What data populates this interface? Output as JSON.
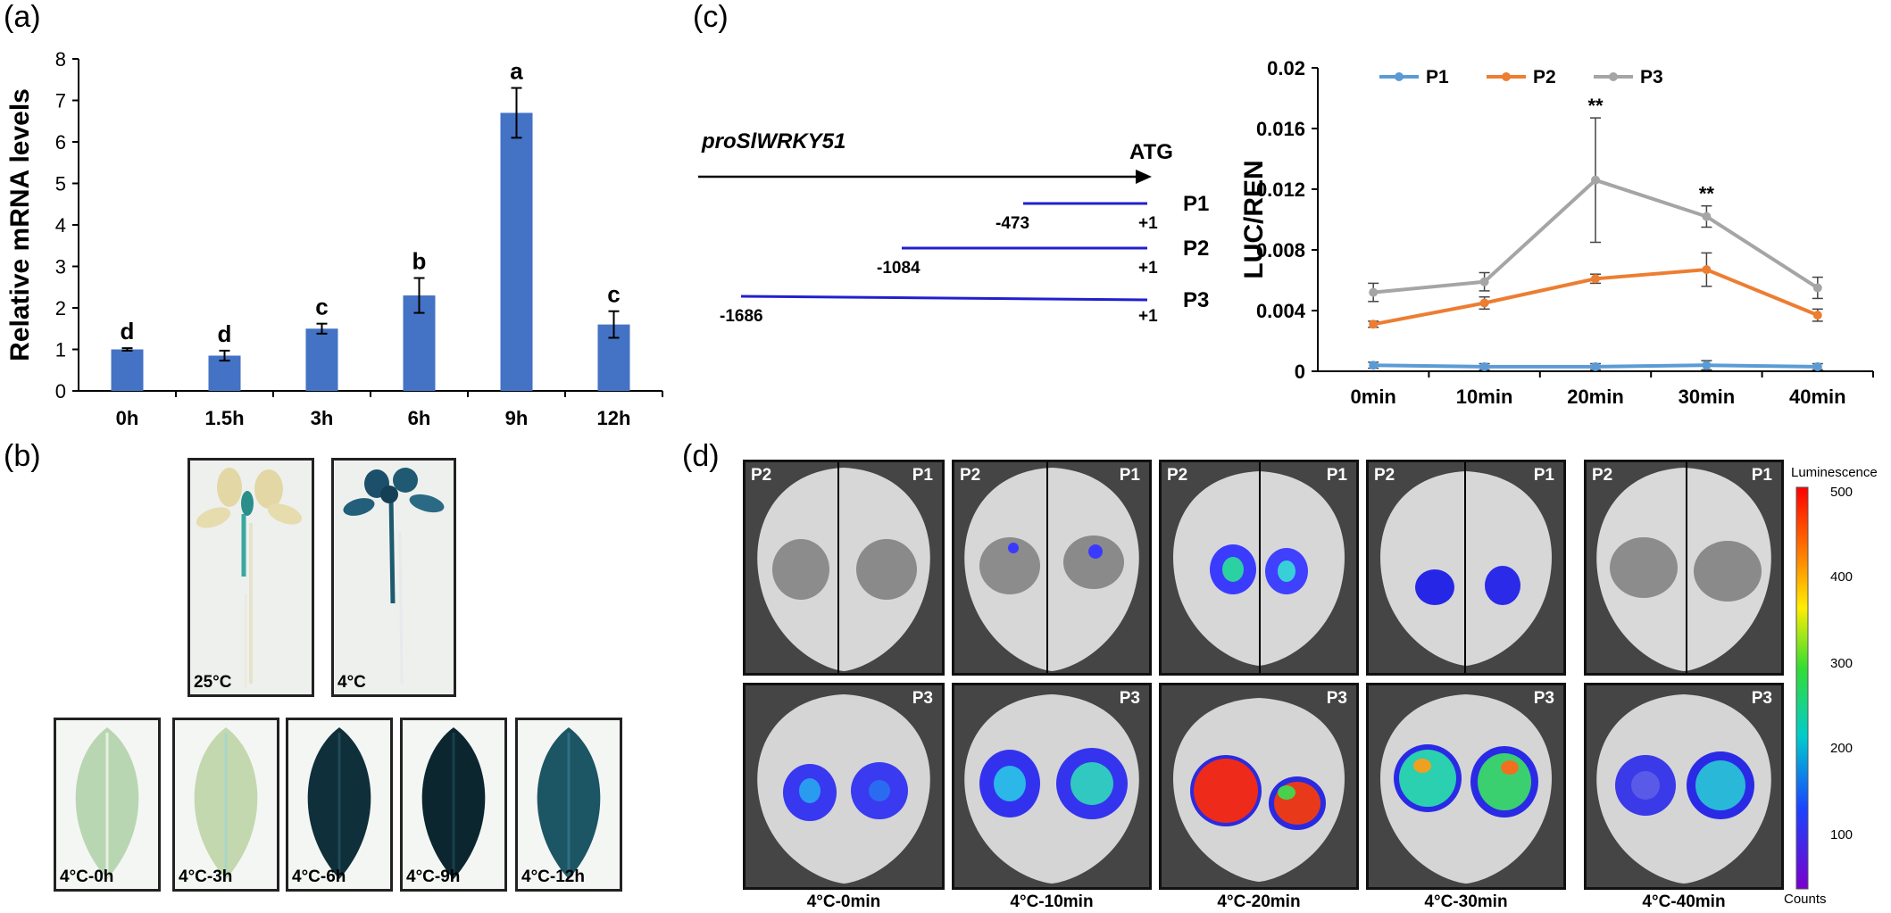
{
  "panels": {
    "a": "(a)",
    "b": "(b)",
    "c": "(c)",
    "d": "(d)"
  },
  "chart_data": [
    {
      "type": "bar",
      "ylabel": "Relative mRNA levels",
      "categories": [
        "0h",
        "1.5h",
        "3h",
        "6h",
        "9h",
        "12h"
      ],
      "values": [
        1.0,
        0.85,
        1.5,
        2.3,
        6.7,
        1.6
      ],
      "errors": [
        0.03,
        0.12,
        0.12,
        0.42,
        0.6,
        0.32
      ],
      "letters": [
        "d",
        "d",
        "c",
        "b",
        "a",
        "c"
      ],
      "ylim": [
        0,
        8
      ],
      "yticks": [
        "0",
        "1",
        "2",
        "3",
        "4",
        "5",
        "6",
        "7",
        "8"
      ],
      "bar_color": "#4472C4"
    },
    {
      "type": "line",
      "ylabel": "LUC/REN",
      "categories": [
        "0min",
        "10min",
        "20min",
        "30min",
        "40min"
      ],
      "ylim": [
        0,
        0.02
      ],
      "yticks": [
        "0",
        "0.004",
        "0.008",
        "0.012",
        "0.016",
        "0.02"
      ],
      "series": [
        {
          "name": "P1",
          "color": "#5B9BD5",
          "values": [
            0.0004,
            0.0003,
            0.0003,
            0.0004,
            0.0003
          ],
          "errors": [
            0.0002,
            0.0002,
            0.0002,
            0.0003,
            0.0002
          ]
        },
        {
          "name": "P2",
          "color": "#ED7D31",
          "values": [
            0.0031,
            0.0045,
            0.0061,
            0.0067,
            0.0037
          ],
          "errors": [
            0.0002,
            0.0004,
            0.0003,
            0.0011,
            0.0004
          ]
        },
        {
          "name": "P3",
          "color": "#A5A5A5",
          "values": [
            0.0052,
            0.0059,
            0.0126,
            0.0102,
            0.0055
          ],
          "errors": [
            0.0006,
            0.0006,
            0.0041,
            0.0007,
            0.0007
          ]
        }
      ],
      "annotations": [
        {
          "category": "20min",
          "text": "**"
        },
        {
          "category": "30min",
          "text": "**"
        }
      ],
      "legend": "top"
    }
  ],
  "promoter": {
    "name": "proSlWRKY51",
    "atg": "ATG",
    "constructs": [
      {
        "label": "P1",
        "start": "-473",
        "end": "+1"
      },
      {
        "label": "P2",
        "start": "-1084",
        "end": "+1"
      },
      {
        "label": "P3",
        "start": "-1686",
        "end": "+1"
      }
    ]
  },
  "panel_b": {
    "seedlings": [
      "25°C",
      "4°C"
    ],
    "leaves": [
      "4°C-0h",
      "4°C-3h",
      "4°C-6h",
      "4°C-9h",
      "4°C-12h"
    ]
  },
  "panel_d": {
    "top_left": "P2",
    "top_right": "P1",
    "bottom": "P3",
    "captions": [
      "4°C-0min",
      "4°C-10min",
      "4°C-20min",
      "4°C-30min",
      "4°C-40min"
    ],
    "colorbar": {
      "title": "Luminescence",
      "unit": "Counts",
      "ticks": [
        "500",
        "400",
        "300",
        "200",
        "100"
      ]
    }
  }
}
